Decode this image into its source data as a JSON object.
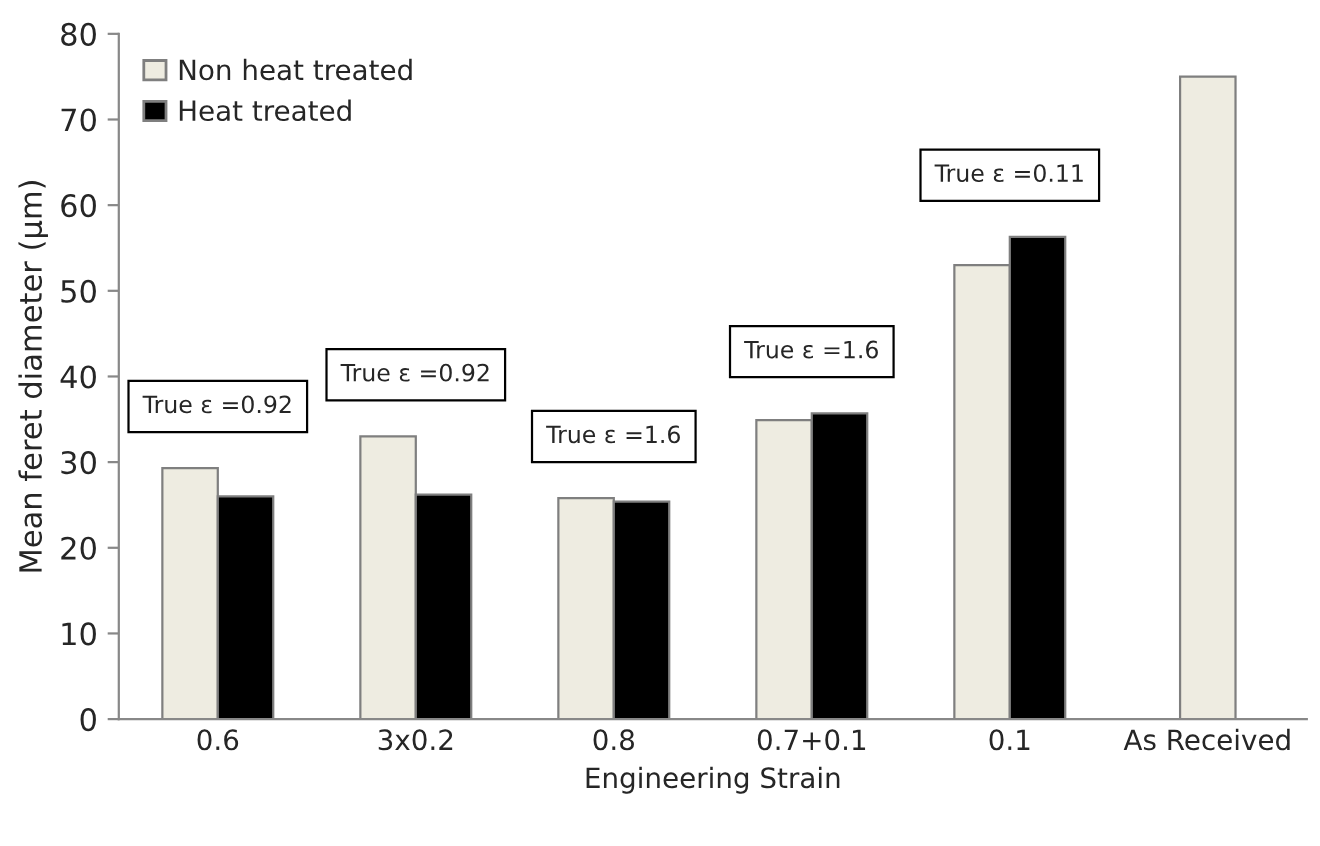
{
  "chart_data": {
    "type": "bar",
    "xlabel": "Engineering Strain",
    "ylabel": "Mean feret diameter (µm)",
    "categories": [
      "0.6",
      "3x0.2",
      "0.8",
      "0.7+0.1",
      "0.1",
      "As Received"
    ],
    "series": [
      {
        "name": "Non heat treated",
        "color": "#eeece1",
        "values": [
          29.3,
          33.0,
          25.8,
          34.9,
          53.0,
          75
        ]
      },
      {
        "name": "Heat treated",
        "color": "#000000",
        "values": [
          26.0,
          26.2,
          25.4,
          35.7,
          56.3,
          null
        ]
      }
    ],
    "ylim": [
      0,
      80
    ],
    "yticks": [
      0,
      10,
      20,
      30,
      40,
      50,
      60,
      70,
      80
    ],
    "grid": false,
    "legend": "top left",
    "annotations": [
      "True ε =0.92",
      "True ε =0.92",
      "True ε =1.6",
      "True ε =1.6",
      "True ε =0.11"
    ]
  }
}
